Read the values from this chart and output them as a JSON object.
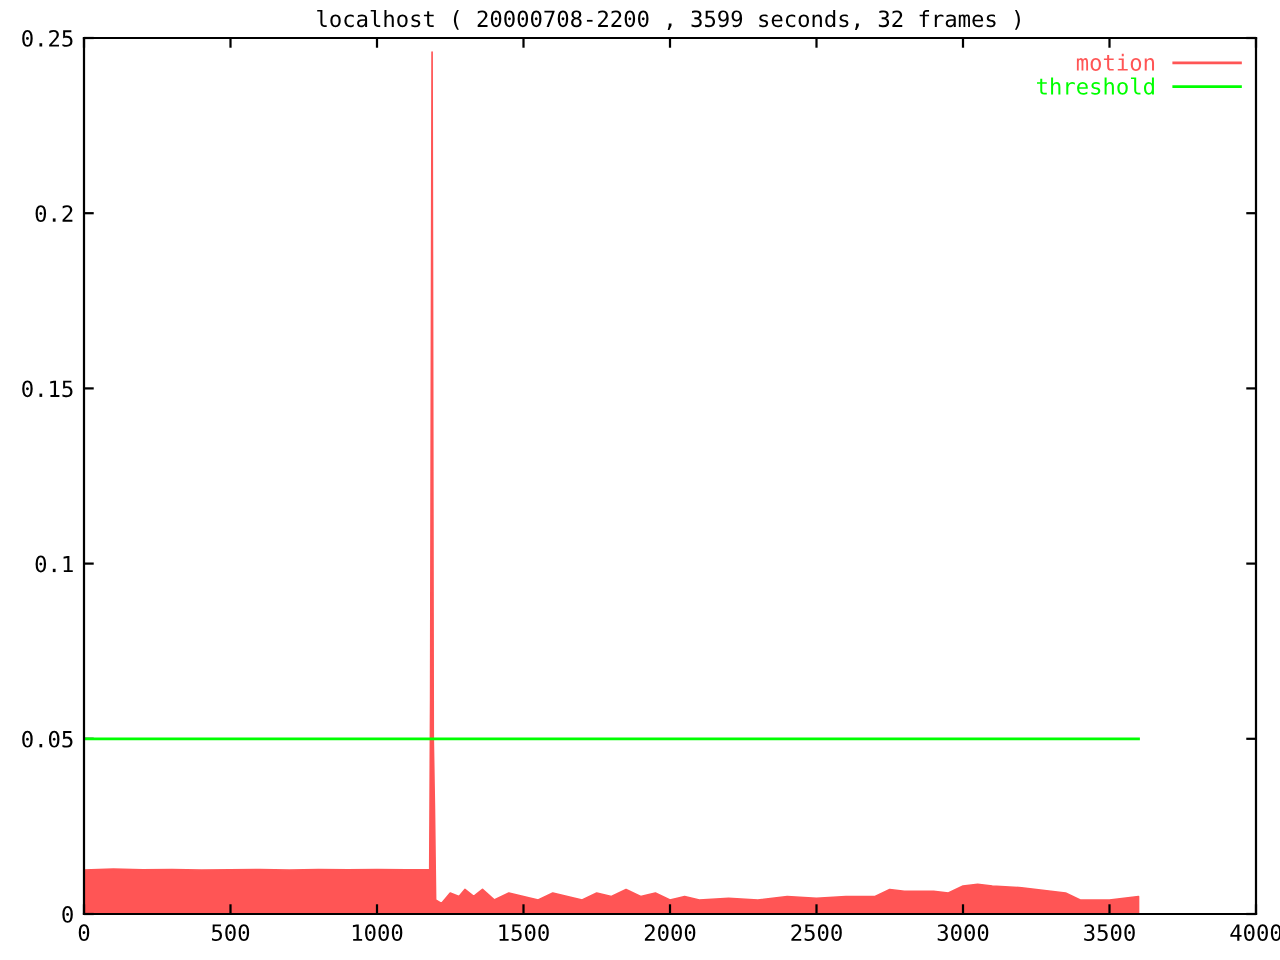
{
  "chart_data": {
    "type": "area",
    "title": "localhost ( 20000708-2200 , 3599 seconds, 32 frames )",
    "series": [
      {
        "name": "motion",
        "color": "#ff5555",
        "x": [
          0,
          100,
          200,
          300,
          400,
          500,
          600,
          700,
          800,
          900,
          1000,
          1100,
          1180,
          1183,
          1188,
          1192,
          1196,
          1200,
          1220,
          1250,
          1280,
          1300,
          1330,
          1360,
          1400,
          1450,
          1500,
          1550,
          1600,
          1650,
          1700,
          1750,
          1800,
          1850,
          1900,
          1950,
          2000,
          2050,
          2100,
          2200,
          2300,
          2400,
          2500,
          2600,
          2700,
          2750,
          2800,
          2900,
          2950,
          3000,
          3050,
          3100,
          3200,
          3300,
          3350,
          3400,
          3500,
          3599
        ],
        "values": [
          0.0125,
          0.0128,
          0.0126,
          0.0127,
          0.0125,
          0.0126,
          0.0127,
          0.0125,
          0.0127,
          0.0126,
          0.0127,
          0.0126,
          0.0127,
          0.061,
          0.246,
          0.05,
          0.03,
          0.004,
          0.003,
          0.006,
          0.005,
          0.007,
          0.005,
          0.007,
          0.004,
          0.006,
          0.005,
          0.004,
          0.006,
          0.005,
          0.004,
          0.006,
          0.005,
          0.007,
          0.005,
          0.006,
          0.004,
          0.005,
          0.004,
          0.0045,
          0.004,
          0.005,
          0.0045,
          0.005,
          0.005,
          0.007,
          0.0065,
          0.0065,
          0.006,
          0.008,
          0.0085,
          0.008,
          0.0075,
          0.0065,
          0.006,
          0.004,
          0.004,
          0.005
        ]
      },
      {
        "name": "threshold",
        "color": "#00ff00",
        "type": "line",
        "x": [
          0,
          3599
        ],
        "values": [
          0.05,
          0.05
        ]
      }
    ],
    "xlim": [
      0,
      4000
    ],
    "xticks": [
      0,
      500,
      1000,
      1500,
      2000,
      2500,
      3000,
      3500,
      4000
    ],
    "ylim": [
      0,
      0.25
    ],
    "yticks": [
      0,
      0.05,
      0.1,
      0.15,
      0.2,
      0.25
    ],
    "grid": false,
    "legend": "top right"
  }
}
